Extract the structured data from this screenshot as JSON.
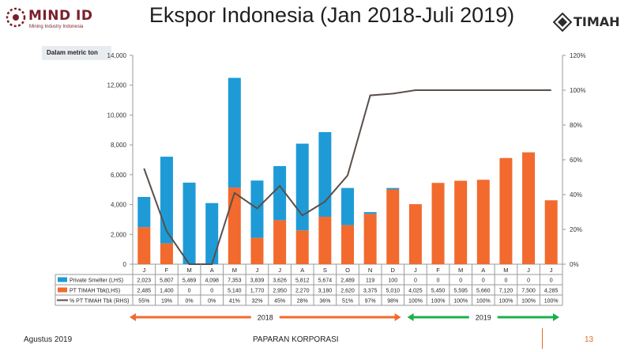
{
  "header": {
    "brand_left": "MIND ID",
    "brand_left_tagline": "Mining Industry Indonesia",
    "title": "Ekspor Indonesia (Jan 2018-Juli 2019)",
    "brand_right": "TIMAH",
    "unit_label": "Dalam metric ton"
  },
  "colors": {
    "private": "#1e9bd7",
    "timah": "#f26a2e",
    "line": "#5a4f4a",
    "arrow_2018": "#f26a2e",
    "arrow_2019": "#1db04b"
  },
  "chart_data": {
    "type": "bar",
    "stacked": true,
    "categories": [
      "J",
      "F",
      "M",
      "A",
      "M",
      "J",
      "J",
      "A",
      "S",
      "O",
      "N",
      "D",
      "J",
      "F",
      "M",
      "A",
      "M",
      "J",
      "J"
    ],
    "series": [
      {
        "name": "Private Smelter (LHS)",
        "axis": "left",
        "values": [
          2023,
          5807,
          5469,
          4098,
          7353,
          3839,
          3626,
          5812,
          5674,
          2489,
          119,
          100,
          0,
          0,
          0,
          0,
          0,
          0,
          0
        ],
        "display": [
          "2,023",
          "5,807",
          "5,469",
          "4,098",
          "7,353",
          "3,839",
          "3,626",
          "5,812",
          "5,674",
          "2,489",
          "119",
          "100",
          "0",
          "0",
          "0",
          "0",
          "0",
          "0",
          "0"
        ]
      },
      {
        "name": "PT TIMAH Tbk(LHS)",
        "axis": "left",
        "values": [
          2485,
          1400,
          0,
          0,
          5140,
          1770,
          2950,
          2270,
          3180,
          2620,
          3375,
          5010,
          4025,
          5450,
          5595,
          5660,
          7120,
          7500,
          4285
        ],
        "display": [
          "2,485",
          "1,400",
          "0",
          "0",
          "5,140",
          "1,770",
          "2,950",
          "2,270",
          "3,180",
          "2,620",
          "3,375",
          "5,010",
          "4,025",
          "5,450",
          "5,595",
          "5,660",
          "7,120",
          "7,500",
          "4,285"
        ]
      },
      {
        "name": "% PT TIMAH Tbk (RHS)",
        "axis": "right",
        "type": "line",
        "values": [
          55,
          19,
          0,
          0,
          41,
          32,
          45,
          28,
          36,
          51,
          97,
          98,
          100,
          100,
          100,
          100,
          100,
          100,
          100
        ],
        "display": [
          "55%",
          "19%",
          "0%",
          "0%",
          "41%",
          "32%",
          "45%",
          "28%",
          "36%",
          "51%",
          "97%",
          "98%",
          "100%",
          "100%",
          "100%",
          "100%",
          "100%",
          "100%",
          "100%"
        ]
      }
    ],
    "y_left": {
      "min": 0,
      "max": 14000,
      "ticks": [
        "0",
        "2,000",
        "4,000",
        "6,000",
        "8,000",
        "10,000",
        "12,000",
        "14,000"
      ]
    },
    "y_right": {
      "min": 0,
      "max": 120,
      "ticks": [
        "0%",
        "20%",
        "40%",
        "60%",
        "80%",
        "100%",
        "120%"
      ]
    },
    "year_labels": [
      {
        "label": "2018",
        "from": 0,
        "to": 11
      },
      {
        "label": "2019",
        "from": 12,
        "to": 18
      }
    ],
    "grid": false,
    "legend": "data-table"
  },
  "footer": {
    "date": "Agustus 2019",
    "center": "PAPARAN KORPORASI",
    "page": "13"
  }
}
